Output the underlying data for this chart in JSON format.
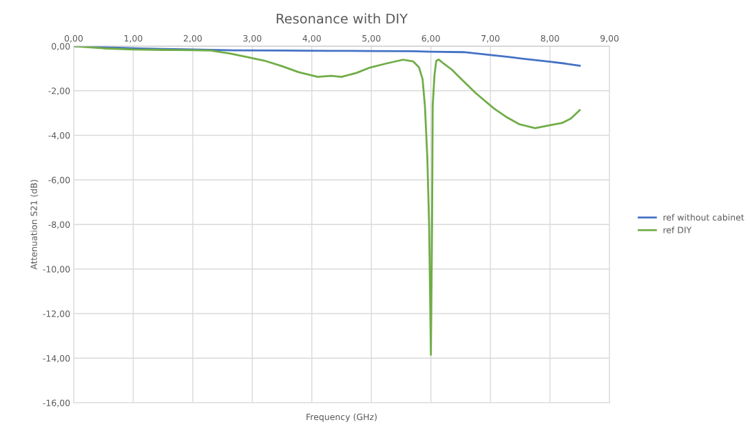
{
  "chart_data": {
    "type": "line",
    "title": "Resonance with DIY",
    "xlabel": "Frequency (GHz)",
    "ylabel": "Attenuation S21 (dB)",
    "series": [
      {
        "name": "ref without cabinet",
        "color": "#4472c4",
        "x": [
          0,
          0.5,
          1.0,
          1.5,
          2.0,
          2.7,
          3.5,
          4.3,
          5.0,
          5.7,
          6.0,
          6.55,
          7.0,
          7.3,
          7.66,
          8.0,
          8.25,
          8.5
        ],
        "values": [
          0,
          -0.05,
          -0.1,
          -0.13,
          -0.15,
          -0.19,
          -0.2,
          -0.21,
          -0.22,
          -0.23,
          -0.25,
          -0.27,
          -0.4,
          -0.48,
          -0.6,
          -0.7,
          -0.78,
          -0.88
        ]
      },
      {
        "name": "ref DIY",
        "color": "#70ad47",
        "x": [
          0,
          0.5,
          1.0,
          1.5,
          2.0,
          2.3,
          2.62,
          2.9,
          3.2,
          3.5,
          3.78,
          4.1,
          4.32,
          4.5,
          4.75,
          4.98,
          5.25,
          5.53,
          5.7,
          5.8,
          5.86,
          5.9,
          5.94,
          5.97,
          6.0,
          6.02,
          6.03,
          6.06,
          6.09,
          6.13,
          6.2,
          6.35,
          6.48,
          6.75,
          7.06,
          7.25,
          7.48,
          7.75,
          8.0,
          8.2,
          8.35,
          8.5
        ],
        "values": [
          0,
          -0.1,
          -0.15,
          -0.17,
          -0.18,
          -0.2,
          -0.33,
          -0.48,
          -0.65,
          -0.9,
          -1.17,
          -1.38,
          -1.33,
          -1.38,
          -1.2,
          -0.96,
          -0.78,
          -0.61,
          -0.68,
          -0.95,
          -1.48,
          -2.7,
          -5.0,
          -8.0,
          -13.85,
          -8.0,
          -2.7,
          -1.3,
          -0.66,
          -0.6,
          -0.75,
          -1.05,
          -1.4,
          -2.1,
          -2.8,
          -3.15,
          -3.5,
          -3.68,
          -3.55,
          -3.45,
          -3.25,
          -2.87
        ]
      }
    ],
    "xlim": [
      0,
      9
    ],
    "xticks": [
      {
        "value": 0,
        "label": "0,00"
      },
      {
        "value": 1,
        "label": "1,00"
      },
      {
        "value": 2,
        "label": "2,00"
      },
      {
        "value": 3,
        "label": "3,00"
      },
      {
        "value": 4,
        "label": "4,00"
      },
      {
        "value": 5,
        "label": "5,00"
      },
      {
        "value": 6,
        "label": "6,00"
      },
      {
        "value": 7,
        "label": "7,00"
      },
      {
        "value": 8,
        "label": "8,00"
      },
      {
        "value": 9,
        "label": "9,00"
      }
    ],
    "ylim": [
      -16,
      0
    ],
    "yticks": [
      {
        "value": -16,
        "label": "-16,00"
      },
      {
        "value": -14,
        "label": "-14,00"
      },
      {
        "value": -12,
        "label": "-12,00"
      },
      {
        "value": -10,
        "label": "-10,00"
      },
      {
        "value": -8,
        "label": "-8,00"
      },
      {
        "value": -6,
        "label": "-6,00"
      },
      {
        "value": -4,
        "label": "-4,00"
      },
      {
        "value": -2,
        "label": "-2,00"
      },
      {
        "value": 0,
        "label": "0,00"
      }
    ],
    "grid": true,
    "legend": "right"
  }
}
